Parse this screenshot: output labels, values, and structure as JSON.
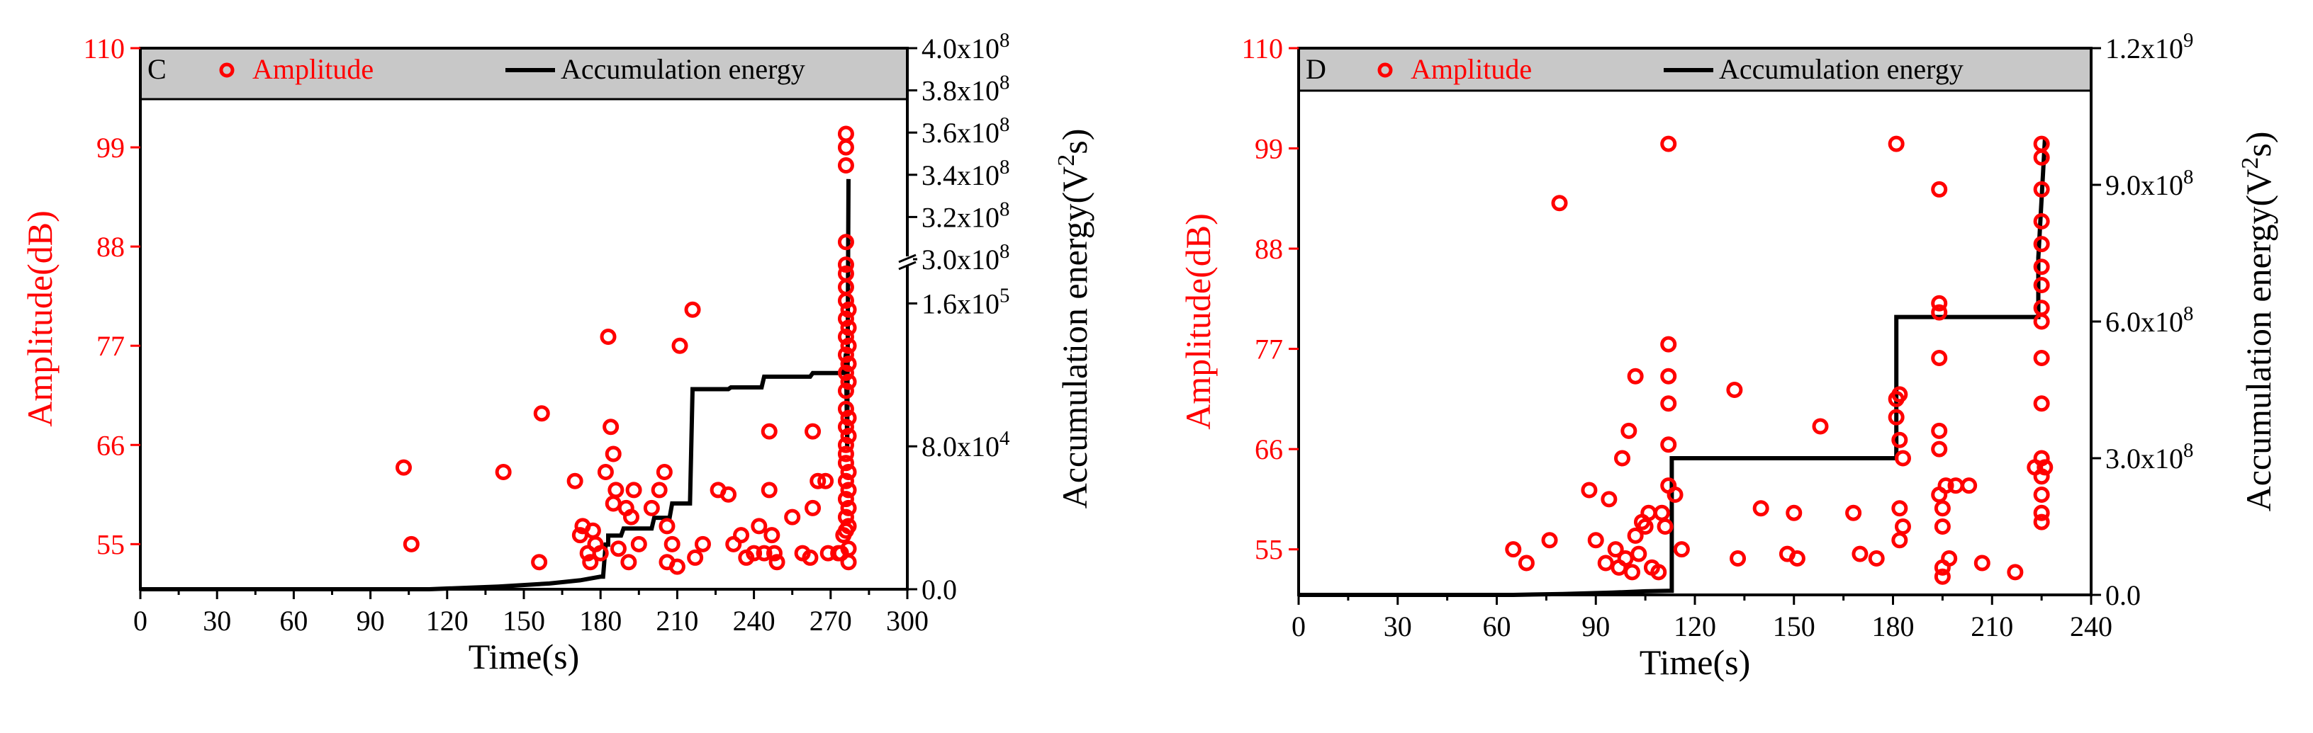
{
  "chart_data": [
    {
      "type": "scatter+line",
      "panel_label": "C",
      "legend": {
        "scatter_label": "Amplitude",
        "line_label": "Accumulation energy",
        "placement": "top"
      },
      "xlabel": "Time(s)",
      "ylabel_left": "Amplitude(dB)",
      "ylabel_right": "Accumulation energy(V",
      "ylabel_right_sup": "2",
      "ylabel_right_tail": "s)",
      "xlim": [
        0,
        300
      ],
      "x_ticks": [
        "0",
        "30",
        "60",
        "90",
        "120",
        "150",
        "180",
        "210",
        "240",
        "270",
        "300"
      ],
      "ylim_left": [
        50,
        110
      ],
      "y_ticks_left": [
        "55",
        "66",
        "77",
        "88",
        "99",
        "110"
      ],
      "right_axis_broken": true,
      "right_lower_range": [
        0,
        180000
      ],
      "right_lower_ticks": [
        {
          "value": 0,
          "label": "0.0"
        },
        {
          "value": 80000,
          "label": "8.0x10",
          "exp": "4"
        },
        {
          "value": 160000,
          "label": "1.6x10",
          "exp": "5"
        }
      ],
      "right_upper_range": [
        300000000,
        400000000
      ],
      "right_upper_ticks": [
        {
          "value": 300000000,
          "label": "3.0x10",
          "exp": "8"
        },
        {
          "value": 320000000,
          "label": "3.2x10",
          "exp": "8"
        },
        {
          "value": 340000000,
          "label": "3.4x10",
          "exp": "8"
        },
        {
          "value": 360000000,
          "label": "3.6x10",
          "exp": "8"
        },
        {
          "value": 380000000,
          "label": "3.8x10",
          "exp": "8"
        },
        {
          "value": 400000000,
          "label": "4.0x10",
          "exp": "8"
        }
      ],
      "amplitude_points": [
        [
          103,
          63.5
        ],
        [
          106,
          55
        ],
        [
          142,
          63
        ],
        [
          156,
          53
        ],
        [
          157,
          69.5
        ],
        [
          170,
          62
        ],
        [
          172,
          56
        ],
        [
          173,
          57
        ],
        [
          175,
          54
        ],
        [
          176,
          53
        ],
        [
          177,
          56.5
        ],
        [
          178,
          55
        ],
        [
          180,
          54
        ],
        [
          182,
          63
        ],
        [
          183,
          78
        ],
        [
          184,
          68
        ],
        [
          185,
          59.5
        ],
        [
          185,
          65
        ],
        [
          186,
          61
        ],
        [
          187,
          54.5
        ],
        [
          190,
          59
        ],
        [
          191,
          53
        ],
        [
          192,
          58
        ],
        [
          193,
          61
        ],
        [
          195,
          55
        ],
        [
          200,
          59
        ],
        [
          203,
          61
        ],
        [
          205,
          63
        ],
        [
          206,
          53
        ],
        [
          206,
          57
        ],
        [
          208,
          55
        ],
        [
          210,
          52.5
        ],
        [
          211,
          77
        ],
        [
          216,
          81
        ],
        [
          217,
          53.5
        ],
        [
          220,
          55
        ],
        [
          226,
          61
        ],
        [
          230,
          60.5
        ],
        [
          232,
          55
        ],
        [
          235,
          56
        ],
        [
          237,
          53.5
        ],
        [
          240,
          54
        ],
        [
          242,
          57
        ],
        [
          244,
          54
        ],
        [
          246,
          61
        ],
        [
          246,
          67.5
        ],
        [
          247,
          56
        ],
        [
          248,
          54
        ],
        [
          249,
          53
        ],
        [
          255,
          58
        ],
        [
          259,
          54
        ],
        [
          262,
          53.5
        ],
        [
          263,
          67.5
        ],
        [
          263,
          59
        ],
        [
          265,
          62
        ],
        [
          268,
          62
        ],
        [
          269,
          54
        ],
        [
          273,
          54
        ],
        [
          274,
          54
        ],
        [
          275,
          56
        ],
        [
          276,
          56.5
        ],
        [
          276,
          58
        ],
        [
          276,
          60
        ],
        [
          276,
          62
        ],
        [
          276,
          64
        ],
        [
          276,
          65
        ],
        [
          276,
          66
        ],
        [
          276,
          68
        ],
        [
          276,
          70
        ],
        [
          276,
          72
        ],
        [
          276,
          74
        ],
        [
          276,
          76
        ],
        [
          276,
          78
        ],
        [
          276,
          80
        ],
        [
          276,
          82
        ],
        [
          276,
          83.5
        ],
        [
          276,
          85
        ],
        [
          276,
          86
        ],
        [
          276,
          88.5
        ],
        [
          276,
          97
        ],
        [
          276,
          99
        ],
        [
          276,
          100.5
        ],
        [
          277,
          53
        ],
        [
          277,
          54.5
        ],
        [
          277,
          57
        ],
        [
          277,
          59
        ],
        [
          277,
          61
        ],
        [
          277,
          63
        ],
        [
          277,
          67
        ],
        [
          277,
          69
        ],
        [
          277,
          73
        ],
        [
          277,
          75
        ],
        [
          277,
          77
        ],
        [
          277,
          79
        ],
        [
          277,
          81
        ]
      ],
      "energy_steps": [
        [
          0,
          0
        ],
        [
          113,
          0
        ],
        [
          140,
          1500
        ],
        [
          160,
          3200
        ],
        [
          172,
          5000
        ],
        [
          180,
          7000
        ],
        [
          181,
          7000
        ],
        [
          182,
          25000
        ],
        [
          183,
          25000
        ],
        [
          183,
          30000
        ],
        [
          188,
          30000
        ],
        [
          189,
          34000
        ],
        [
          200,
          34000
        ],
        [
          201,
          40000
        ],
        [
          207,
          40000
        ],
        [
          208,
          48000
        ],
        [
          215,
          48000
        ],
        [
          216,
          112000
        ],
        [
          230,
          112000
        ],
        [
          231,
          113000
        ],
        [
          243,
          113000
        ],
        [
          244,
          119000
        ],
        [
          262,
          119000
        ],
        [
          263,
          121000
        ],
        [
          275,
          121000
        ],
        [
          276,
          132000
        ],
        [
          276.5,
          210000000
        ],
        [
          277,
          338000000
        ]
      ]
    },
    {
      "type": "scatter+line",
      "panel_label": "D",
      "legend": {
        "scatter_label": "Amplitude",
        "line_label": "Accumulation energy",
        "placement": "top"
      },
      "xlabel": "Time(s)",
      "ylabel_left": "Amplitude(dB)",
      "ylabel_right": "Accumulation energy(V",
      "ylabel_right_sup": "2",
      "ylabel_right_tail": "s)",
      "xlim": [
        0,
        240
      ],
      "x_ticks": [
        "0",
        "30",
        "60",
        "90",
        "120",
        "150",
        "180",
        "210",
        "240"
      ],
      "ylim_left": [
        50,
        110
      ],
      "y_ticks_left": [
        "55",
        "66",
        "77",
        "88",
        "99",
        "110"
      ],
      "ylim_right": [
        0,
        1200000000
      ],
      "right_ticks": [
        {
          "value": 0,
          "label": "0.0"
        },
        {
          "value": 300000000,
          "label": "3.0x10",
          "exp": "8"
        },
        {
          "value": 600000000,
          "label": "6.0x10",
          "exp": "8"
        },
        {
          "value": 900000000,
          "label": "9.0x10",
          "exp": "8"
        },
        {
          "value": 1200000000,
          "label": "1.2x10",
          "exp": "9"
        }
      ],
      "amplitude_points": [
        [
          65,
          55
        ],
        [
          69,
          53.5
        ],
        [
          76,
          56
        ],
        [
          79,
          93
        ],
        [
          88,
          61.5
        ],
        [
          90,
          56
        ],
        [
          93,
          53.5
        ],
        [
          94,
          60.5
        ],
        [
          96,
          55
        ],
        [
          97,
          53
        ],
        [
          98,
          65
        ],
        [
          99,
          54
        ],
        [
          100,
          68
        ],
        [
          101,
          52.5
        ],
        [
          102,
          56.5
        ],
        [
          102,
          74
        ],
        [
          103,
          54.5
        ],
        [
          104,
          58
        ],
        [
          105,
          57.5
        ],
        [
          106,
          59
        ],
        [
          107,
          53
        ],
        [
          109,
          52.5
        ],
        [
          110,
          59
        ],
        [
          111,
          57.5
        ],
        [
          112,
          62
        ],
        [
          112,
          66.5
        ],
        [
          112,
          71
        ],
        [
          112,
          74
        ],
        [
          112,
          77.5
        ],
        [
          112,
          99.5
        ],
        [
          114,
          61
        ],
        [
          116,
          55
        ],
        [
          132,
          72.5
        ],
        [
          133,
          54
        ],
        [
          140,
          59.5
        ],
        [
          148,
          54.5
        ],
        [
          150,
          59
        ],
        [
          151,
          54
        ],
        [
          158,
          68.5
        ],
        [
          168,
          59
        ],
        [
          170,
          54.5
        ],
        [
          175,
          54
        ],
        [
          181,
          99.5
        ],
        [
          181,
          69.5
        ],
        [
          181,
          71.5
        ],
        [
          182,
          72
        ],
        [
          182,
          67
        ],
        [
          182,
          59.5
        ],
        [
          182,
          56
        ],
        [
          183,
          57.5
        ],
        [
          183,
          65
        ],
        [
          194,
          61
        ],
        [
          194,
          66
        ],
        [
          194,
          68
        ],
        [
          194,
          81
        ],
        [
          194,
          82
        ],
        [
          194,
          76
        ],
        [
          194,
          94.5
        ],
        [
          195,
          59.5
        ],
        [
          195,
          57.5
        ],
        [
          195,
          53
        ],
        [
          195,
          52
        ],
        [
          196,
          62
        ],
        [
          197,
          54
        ],
        [
          199,
          62
        ],
        [
          203,
          62
        ],
        [
          207,
          53.5
        ],
        [
          217,
          52.5
        ],
        [
          223,
          64
        ],
        [
          225,
          99.5
        ],
        [
          225,
          98
        ],
        [
          225,
          94.5
        ],
        [
          225,
          91
        ],
        [
          225,
          88.5
        ],
        [
          225,
          86
        ],
        [
          225,
          84
        ],
        [
          225,
          81.5
        ],
        [
          225,
          80
        ],
        [
          225,
          76
        ],
        [
          225,
          71
        ],
        [
          225,
          65
        ],
        [
          225,
          63
        ],
        [
          225,
          61
        ],
        [
          225,
          59
        ],
        [
          225,
          58
        ],
        [
          226,
          64
        ]
      ],
      "energy_steps": [
        [
          0,
          0
        ],
        [
          65,
          0
        ],
        [
          80,
          2000000
        ],
        [
          95,
          5000000
        ],
        [
          105,
          8000000
        ],
        [
          112,
          9000000
        ],
        [
          113,
          9000000
        ],
        [
          113,
          300000000
        ],
        [
          181,
          300000000
        ],
        [
          181,
          610000000
        ],
        [
          224,
          610000000
        ],
        [
          224,
          740000000
        ],
        [
          226,
          1000000000
        ]
      ]
    }
  ]
}
